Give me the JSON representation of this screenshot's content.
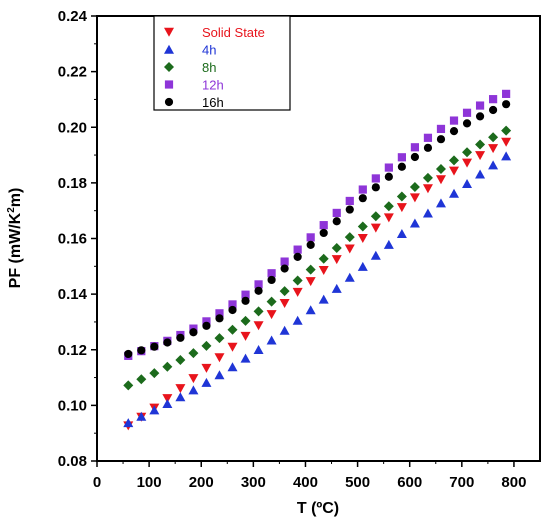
{
  "chart_data": {
    "type": "scatter",
    "xlabel": "T (ºC)",
    "ylabel": {
      "main": "PF (mW/K",
      "sup": "2",
      "tail": "m)"
    },
    "xlim": [
      0,
      850
    ],
    "ylim": [
      0.08,
      0.24
    ],
    "xticks": [
      0,
      100,
      200,
      300,
      400,
      500,
      600,
      700,
      800
    ],
    "yticks": [
      0.08,
      0.1,
      0.12,
      0.14,
      0.16,
      0.18,
      0.2,
      0.22,
      0.24
    ],
    "ytick_labels": [
      "0.08",
      "0.10",
      "0.12",
      "0.14",
      "0.16",
      "0.18",
      "0.20",
      "0.22",
      "0.24"
    ],
    "grid": false,
    "legend": "top-left",
    "x": [
      60,
      85,
      110,
      135,
      160,
      185,
      210,
      235,
      260,
      285,
      310,
      335,
      360,
      385,
      410,
      435,
      460,
      485,
      510,
      535,
      560,
      585,
      610,
      635,
      660,
      685,
      710,
      735,
      760,
      785
    ],
    "series": [
      {
        "name": "Solid State",
        "marker": "triangle-down",
        "color": "#e8141c",
        "values": [
          0.0927,
          0.0958,
          0.0991,
          0.1025,
          0.1061,
          0.1097,
          0.1134,
          0.1172,
          0.121,
          0.1249,
          0.1287,
          0.1327,
          0.1367,
          0.1407,
          0.1446,
          0.1486,
          0.1525,
          0.1563,
          0.1601,
          0.1638,
          0.1675,
          0.1712,
          0.1747,
          0.178,
          0.1812,
          0.1843,
          0.1872,
          0.1899,
          0.1924,
          0.1947
        ]
      },
      {
        "name": "4h",
        "marker": "triangle-up",
        "color": "#1f35d6",
        "values": [
          0.0937,
          0.096,
          0.0983,
          0.1006,
          0.103,
          0.1055,
          0.1082,
          0.1109,
          0.1138,
          0.1169,
          0.12,
          0.1234,
          0.1269,
          0.1305,
          0.1343,
          0.1381,
          0.142,
          0.146,
          0.1499,
          0.1539,
          0.1578,
          0.1617,
          0.1655,
          0.1691,
          0.1727,
          0.1762,
          0.1797,
          0.1831,
          0.1864,
          0.1896
        ]
      },
      {
        "name": "8h",
        "marker": "diamond",
        "color": "#1c6b1c",
        "values": [
          0.1072,
          0.1094,
          0.1116,
          0.1139,
          0.1163,
          0.1188,
          0.1214,
          0.1242,
          0.1272,
          0.1304,
          0.1338,
          0.1373,
          0.1411,
          0.1449,
          0.1488,
          0.1527,
          0.1566,
          0.1605,
          0.1643,
          0.168,
          0.1716,
          0.1751,
          0.1785,
          0.1818,
          0.185,
          0.1881,
          0.191,
          0.1938,
          0.1964,
          0.1988
        ]
      },
      {
        "name": "12h",
        "marker": "square",
        "color": "#8e35d8",
        "values": [
          0.1178,
          0.1195,
          0.1213,
          0.1232,
          0.1253,
          0.1276,
          0.1302,
          0.1331,
          0.1363,
          0.1398,
          0.1435,
          0.1475,
          0.1517,
          0.156,
          0.1604,
          0.1648,
          0.1692,
          0.1735,
          0.1776,
          0.1816,
          0.1855,
          0.1892,
          0.1928,
          0.1962,
          0.1994,
          0.2024,
          0.2052,
          0.2078,
          0.2101,
          0.212
        ]
      },
      {
        "name": "16h",
        "marker": "circle",
        "color": "#000000",
        "values": [
          0.1185,
          0.1198,
          0.1211,
          0.1226,
          0.1243,
          0.1263,
          0.1286,
          0.1313,
          0.1343,
          0.1376,
          0.1412,
          0.1451,
          0.1492,
          0.1534,
          0.1577,
          0.162,
          0.1662,
          0.1704,
          0.1745,
          0.1784,
          0.1822,
          0.1858,
          0.1893,
          0.1926,
          0.1957,
          0.1986,
          0.2014,
          0.2039,
          0.2062,
          0.2083
        ]
      }
    ]
  }
}
